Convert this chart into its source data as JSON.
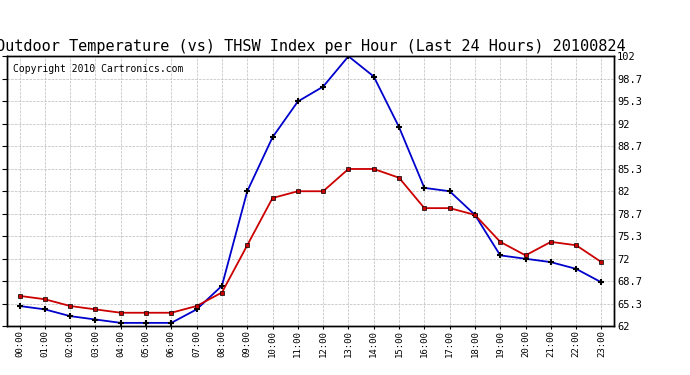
{
  "title": "Outdoor Temperature (vs) THSW Index per Hour (Last 24 Hours) 20100824",
  "copyright": "Copyright 2010 Cartronics.com",
  "hours": [
    "00:00",
    "01:00",
    "02:00",
    "03:00",
    "04:00",
    "05:00",
    "06:00",
    "07:00",
    "08:00",
    "09:00",
    "10:00",
    "11:00",
    "12:00",
    "13:00",
    "14:00",
    "15:00",
    "16:00",
    "17:00",
    "18:00",
    "19:00",
    "20:00",
    "21:00",
    "22:00",
    "23:00"
  ],
  "thsw": [
    65.0,
    64.5,
    63.5,
    63.0,
    62.5,
    62.5,
    62.5,
    64.5,
    68.0,
    82.0,
    90.0,
    95.3,
    97.5,
    102.0,
    99.0,
    91.5,
    82.5,
    82.0,
    78.5,
    72.5,
    72.0,
    71.5,
    70.5,
    68.5
  ],
  "temp": [
    66.5,
    66.0,
    65.0,
    64.5,
    64.0,
    64.0,
    64.0,
    65.0,
    67.0,
    74.0,
    81.0,
    82.0,
    82.0,
    85.3,
    85.3,
    84.0,
    79.5,
    79.5,
    78.5,
    74.5,
    72.5,
    74.5,
    74.0,
    71.5
  ],
  "thsw_color": "#0000cc",
  "temp_color": "#cc0000",
  "background_color": "#ffffff",
  "grid_color": "#bbbbbb",
  "title_color": "#000000",
  "title_fontsize": 11,
  "copyright_fontsize": 7,
  "ylim": [
    62.0,
    102.0
  ],
  "yticks": [
    62.0,
    65.3,
    68.7,
    72.0,
    75.3,
    78.7,
    82.0,
    85.3,
    88.7,
    92.0,
    95.3,
    98.7,
    102.0
  ]
}
